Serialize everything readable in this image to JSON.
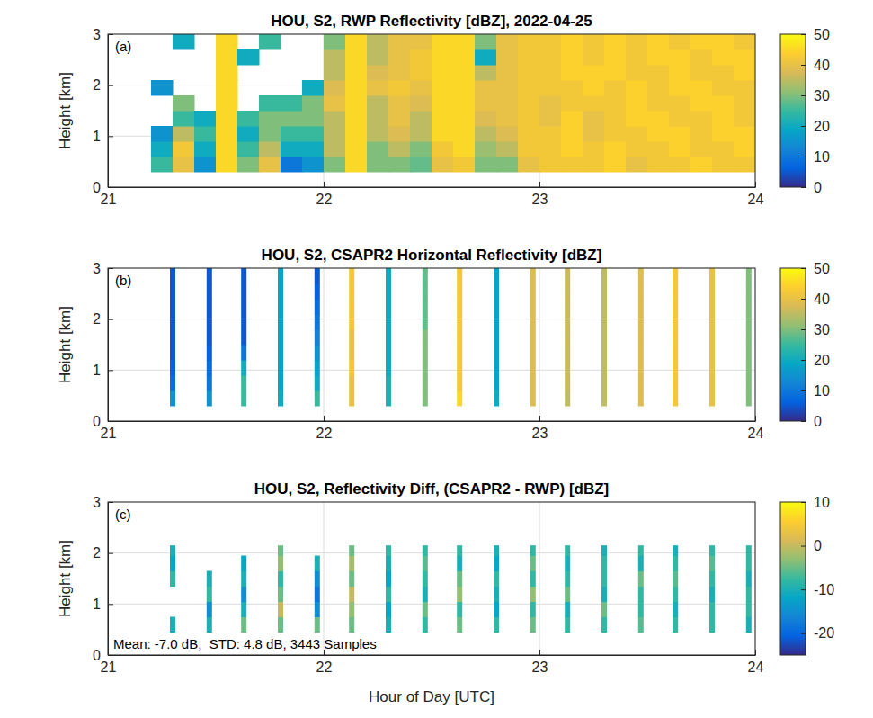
{
  "chart_data": [
    {
      "type": "heatmap",
      "title": "HOU, S2, RWP Reflectivity [dBZ], 2022-04-25",
      "label": "(a)",
      "ylabel": "Height [km]",
      "xlim": [
        21,
        24
      ],
      "xticks": [
        21,
        22,
        23,
        24
      ],
      "ylim": [
        0,
        3
      ],
      "yticks": [
        0,
        1,
        2,
        3
      ],
      "grid": true,
      "colorbar": {
        "range": [
          0,
          50
        ],
        "ticks": [
          0,
          10,
          20,
          30,
          40,
          50
        ]
      },
      "x_edges": [
        21.2,
        21.3,
        21.4,
        21.5,
        21.6,
        21.7,
        21.8,
        21.9,
        22.0,
        22.1,
        22.2,
        22.3,
        22.4,
        22.5,
        22.6,
        22.7,
        22.8,
        22.9,
        23.0,
        23.1,
        23.2,
        23.3,
        23.4,
        23.5,
        23.6,
        23.7,
        23.8,
        23.9,
        24.0
      ],
      "y_edges": [
        0.3,
        0.6,
        0.9,
        1.2,
        1.5,
        1.8,
        2.1,
        2.4,
        2.7,
        3.0
      ],
      "values": [
        [
          25,
          20,
          15,
          null,
          null,
          15,
          null,
          null,
          null
        ],
        [
          40,
          42,
          35,
          25,
          30,
          null,
          null,
          null,
          20
        ],
        [
          15,
          20,
          25,
          20,
          null,
          null,
          null,
          null,
          null
        ],
        [
          45,
          45,
          45,
          45,
          45,
          45,
          45,
          45,
          45
        ],
        [
          30,
          25,
          20,
          25,
          null,
          null,
          null,
          20,
          null
        ],
        [
          40,
          35,
          30,
          30,
          25,
          null,
          null,
          null,
          25
        ],
        [
          10,
          20,
          25,
          30,
          25,
          null,
          null,
          null,
          null
        ],
        [
          15,
          20,
          25,
          30,
          30,
          20,
          null,
          null,
          null
        ],
        [
          30,
          35,
          35,
          35,
          40,
          38,
          35,
          35,
          30
        ],
        [
          45,
          45,
          45,
          45,
          45,
          45,
          45,
          45,
          45
        ],
        [
          30,
          30,
          35,
          35,
          35,
          40,
          38,
          35,
          35
        ],
        [
          30,
          35,
          38,
          40,
          40,
          42,
          40,
          40,
          40
        ],
        [
          28,
          30,
          35,
          35,
          38,
          40,
          42,
          42,
          40
        ],
        [
          40,
          42,
          45,
          45,
          45,
          45,
          45,
          45,
          45
        ],
        [
          42,
          45,
          45,
          45,
          45,
          45,
          45,
          45,
          45
        ],
        [
          30,
          32,
          35,
          38,
          40,
          40,
          35,
          20,
          30
        ],
        [
          30,
          35,
          38,
          40,
          40,
          40,
          40,
          40,
          40
        ],
        [
          40,
          42,
          42,
          42,
          42,
          42,
          42,
          42,
          42
        ],
        [
          42,
          42,
          42,
          40,
          40,
          42,
          42,
          42,
          42
        ],
        [
          42,
          44,
          44,
          44,
          42,
          42,
          44,
          44,
          44
        ],
        [
          42,
          42,
          40,
          40,
          42,
          44,
          44,
          42,
          42
        ],
        [
          44,
          44,
          42,
          42,
          42,
          42,
          44,
          44,
          44
        ],
        [
          40,
          42,
          42,
          44,
          44,
          44,
          42,
          42,
          42
        ],
        [
          42,
          42,
          44,
          44,
          42,
          42,
          42,
          44,
          44
        ],
        [
          42,
          44,
          44,
          42,
          42,
          44,
          44,
          44,
          42
        ],
        [
          44,
          42,
          42,
          42,
          44,
          44,
          42,
          42,
          44
        ],
        [
          42,
          42,
          44,
          44,
          44,
          42,
          42,
          44,
          44
        ],
        [
          42,
          44,
          44,
          42,
          42,
          42,
          44,
          44,
          42
        ]
      ]
    },
    {
      "type": "strip",
      "title": "HOU, S2, CSAPR2 Horizontal Reflectivity [dBZ]",
      "label": "(b)",
      "ylabel": "Height [km]",
      "xlim": [
        21,
        24
      ],
      "xticks": [
        21,
        22,
        23,
        24
      ],
      "ylim": [
        0,
        3
      ],
      "yticks": [
        0,
        1,
        2,
        3
      ],
      "grid": true,
      "colorbar": {
        "range": [
          0,
          50
        ],
        "ticks": [
          0,
          10,
          20,
          30,
          40,
          50
        ]
      },
      "x": [
        21.3,
        21.47,
        21.63,
        21.8,
        21.97,
        22.13,
        22.3,
        22.47,
        22.63,
        22.8,
        22.97,
        23.13,
        23.3,
        23.47,
        23.63,
        23.8,
        23.97
      ],
      "y_edges": [
        0.3,
        0.6,
        0.9,
        1.2,
        1.5,
        1.8,
        2.1,
        2.4,
        2.7,
        3.0
      ],
      "values": [
        [
          15,
          8,
          6,
          5,
          5,
          5,
          5,
          5,
          5
        ],
        [
          15,
          10,
          8,
          6,
          5,
          5,
          5,
          5,
          5
        ],
        [
          25,
          25,
          20,
          10,
          5,
          5,
          5,
          5,
          5
        ],
        [
          20,
          18,
          18,
          18,
          18,
          18,
          18,
          18,
          18
        ],
        [
          25,
          20,
          18,
          15,
          12,
          10,
          8,
          6,
          5
        ],
        [
          40,
          40,
          42,
          40,
          40,
          42,
          42,
          42,
          42
        ],
        [
          22,
          22,
          20,
          20,
          20,
          20,
          20,
          20,
          20
        ],
        [
          30,
          30,
          30,
          30,
          30,
          28,
          28,
          28,
          28
        ],
        [
          45,
          42,
          42,
          42,
          42,
          42,
          42,
          42,
          42
        ],
        [
          20,
          18,
          18,
          18,
          18,
          18,
          18,
          18,
          18
        ],
        [
          38,
          38,
          38,
          38,
          38,
          38,
          38,
          38,
          38
        ],
        [
          35,
          36,
          36,
          36,
          36,
          36,
          36,
          36,
          36
        ],
        [
          35,
          35,
          35,
          35,
          35,
          35,
          35,
          35,
          35
        ],
        [
          38,
          38,
          38,
          38,
          38,
          38,
          38,
          38,
          38
        ],
        [
          42,
          42,
          42,
          42,
          42,
          42,
          42,
          42,
          42
        ],
        [
          40,
          40,
          40,
          40,
          40,
          40,
          40,
          40,
          40
        ],
        [
          30,
          30,
          30,
          30,
          30,
          30,
          30,
          30,
          30
        ]
      ]
    },
    {
      "type": "strip",
      "title": "HOU, S2, Reflectivity Diff, (CSAPR2 - RWP) [dBZ]",
      "label": "(c)",
      "ylabel": "Height [km]",
      "xlabel": "Hour of Day [UTC]",
      "annotation": "Mean: -7.0 dB,  STD: 4.8 dB, 3443 Samples",
      "xlim": [
        21,
        24
      ],
      "xticks": [
        21,
        22,
        23,
        24
      ],
      "ylim": [
        0,
        3
      ],
      "yticks": [
        0,
        1,
        2,
        3
      ],
      "grid": true,
      "colorbar": {
        "range": [
          -25,
          10
        ],
        "ticks": [
          -20,
          -10,
          0,
          10
        ]
      },
      "x": [
        21.3,
        21.47,
        21.63,
        21.8,
        21.97,
        22.13,
        22.3,
        22.47,
        22.63,
        22.8,
        22.97,
        23.13,
        23.3,
        23.47,
        23.63,
        23.8,
        23.97
      ],
      "y_edges": [
        0.45,
        0.75,
        1.05,
        1.35,
        1.65,
        1.95,
        2.15
      ],
      "values": [
        [
          -10,
          null,
          null,
          -8,
          -12,
          -10
        ],
        [
          -10,
          -15,
          -8,
          -10,
          null,
          null
        ],
        [
          -5,
          -10,
          -15,
          -10,
          -12,
          null
        ],
        [
          -5,
          0,
          -5,
          -8,
          -3,
          -5
        ],
        [
          -5,
          -15,
          -18,
          -15,
          -10,
          null
        ],
        [
          -5,
          -3,
          0,
          -5,
          -2,
          -5
        ],
        [
          -10,
          -12,
          -8,
          -12,
          -10,
          -8
        ],
        [
          -8,
          -5,
          -10,
          -8,
          -6,
          -8
        ],
        [
          -5,
          -8,
          -3,
          -5,
          -10,
          -8
        ],
        [
          -8,
          -12,
          -10,
          -8,
          -12,
          -10
        ],
        [
          -5,
          -8,
          -3,
          -8,
          -5,
          -8
        ],
        [
          -8,
          -10,
          -5,
          -8,
          -10,
          -8
        ],
        [
          -8,
          -5,
          -10,
          -8,
          -8,
          -10
        ],
        [
          -6,
          -8,
          -8,
          -5,
          -10,
          -8
        ],
        [
          -8,
          -10,
          -8,
          -6,
          -8,
          -10
        ],
        [
          -8,
          -8,
          -10,
          -8,
          -6,
          -8
        ],
        [
          -10,
          -8,
          -8,
          -10,
          -8,
          -8
        ]
      ]
    }
  ]
}
